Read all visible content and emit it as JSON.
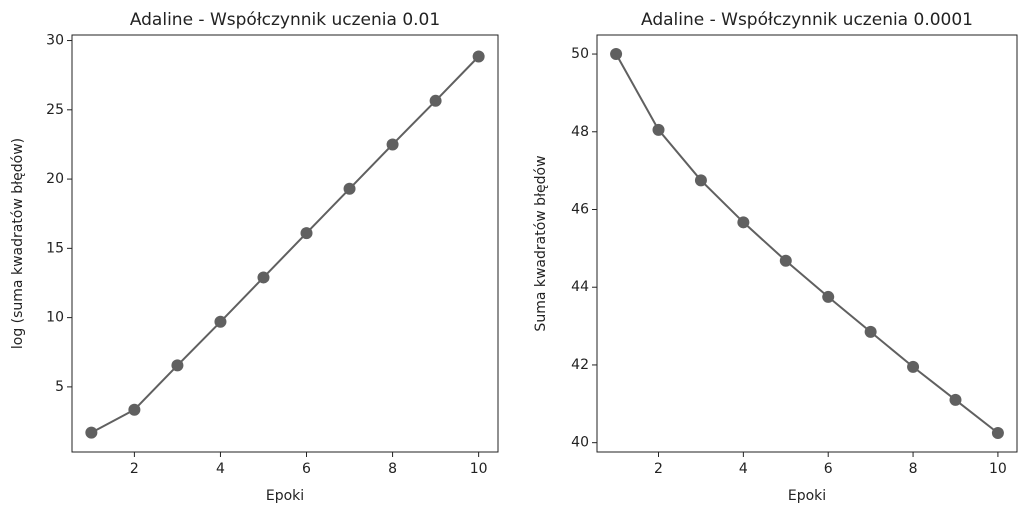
{
  "chart_data": [
    {
      "type": "line",
      "title": "Adaline - Współczynnik uczenia 0.01",
      "x_label": "Epoki",
      "y_label": "log (suma kwadratów błędów)",
      "x": [
        1,
        2,
        3,
        4,
        5,
        6,
        7,
        8,
        9,
        10
      ],
      "series": [
        {
          "name": "log (suma kwadratów błędów)",
          "color": "#606060",
          "values": [
            1.7,
            3.35,
            6.55,
            9.7,
            12.9,
            16.1,
            19.3,
            22.5,
            25.65,
            28.85
          ]
        }
      ],
      "xlim": [
        0.55,
        10.45
      ],
      "xticks": [
        2,
        4,
        6,
        8,
        10
      ],
      "ylim": [
        0.3,
        30.4
      ],
      "yticks": [
        5,
        10,
        15,
        20,
        25,
        30
      ]
    },
    {
      "type": "line",
      "title": "Adaline - Współczynnik uczenia 0.0001",
      "x_label": "Epoki",
      "y_label": "Suma kwadratów błędów",
      "x": [
        1,
        2,
        3,
        4,
        5,
        6,
        7,
        8,
        9,
        10
      ],
      "series": [
        {
          "name": "Suma kwadratów błędów",
          "color": "#606060",
          "values": [
            50,
            48.05,
            46.75,
            45.67,
            44.68,
            43.75,
            42.85,
            41.95,
            41.1,
            40.25
          ]
        }
      ],
      "xlim": [
        0.55,
        10.45
      ],
      "xticks": [
        2,
        4,
        6,
        8,
        10
      ],
      "ylim": [
        39.76,
        50.49
      ],
      "yticks": [
        40,
        42,
        44,
        46,
        48,
        50
      ]
    }
  ]
}
